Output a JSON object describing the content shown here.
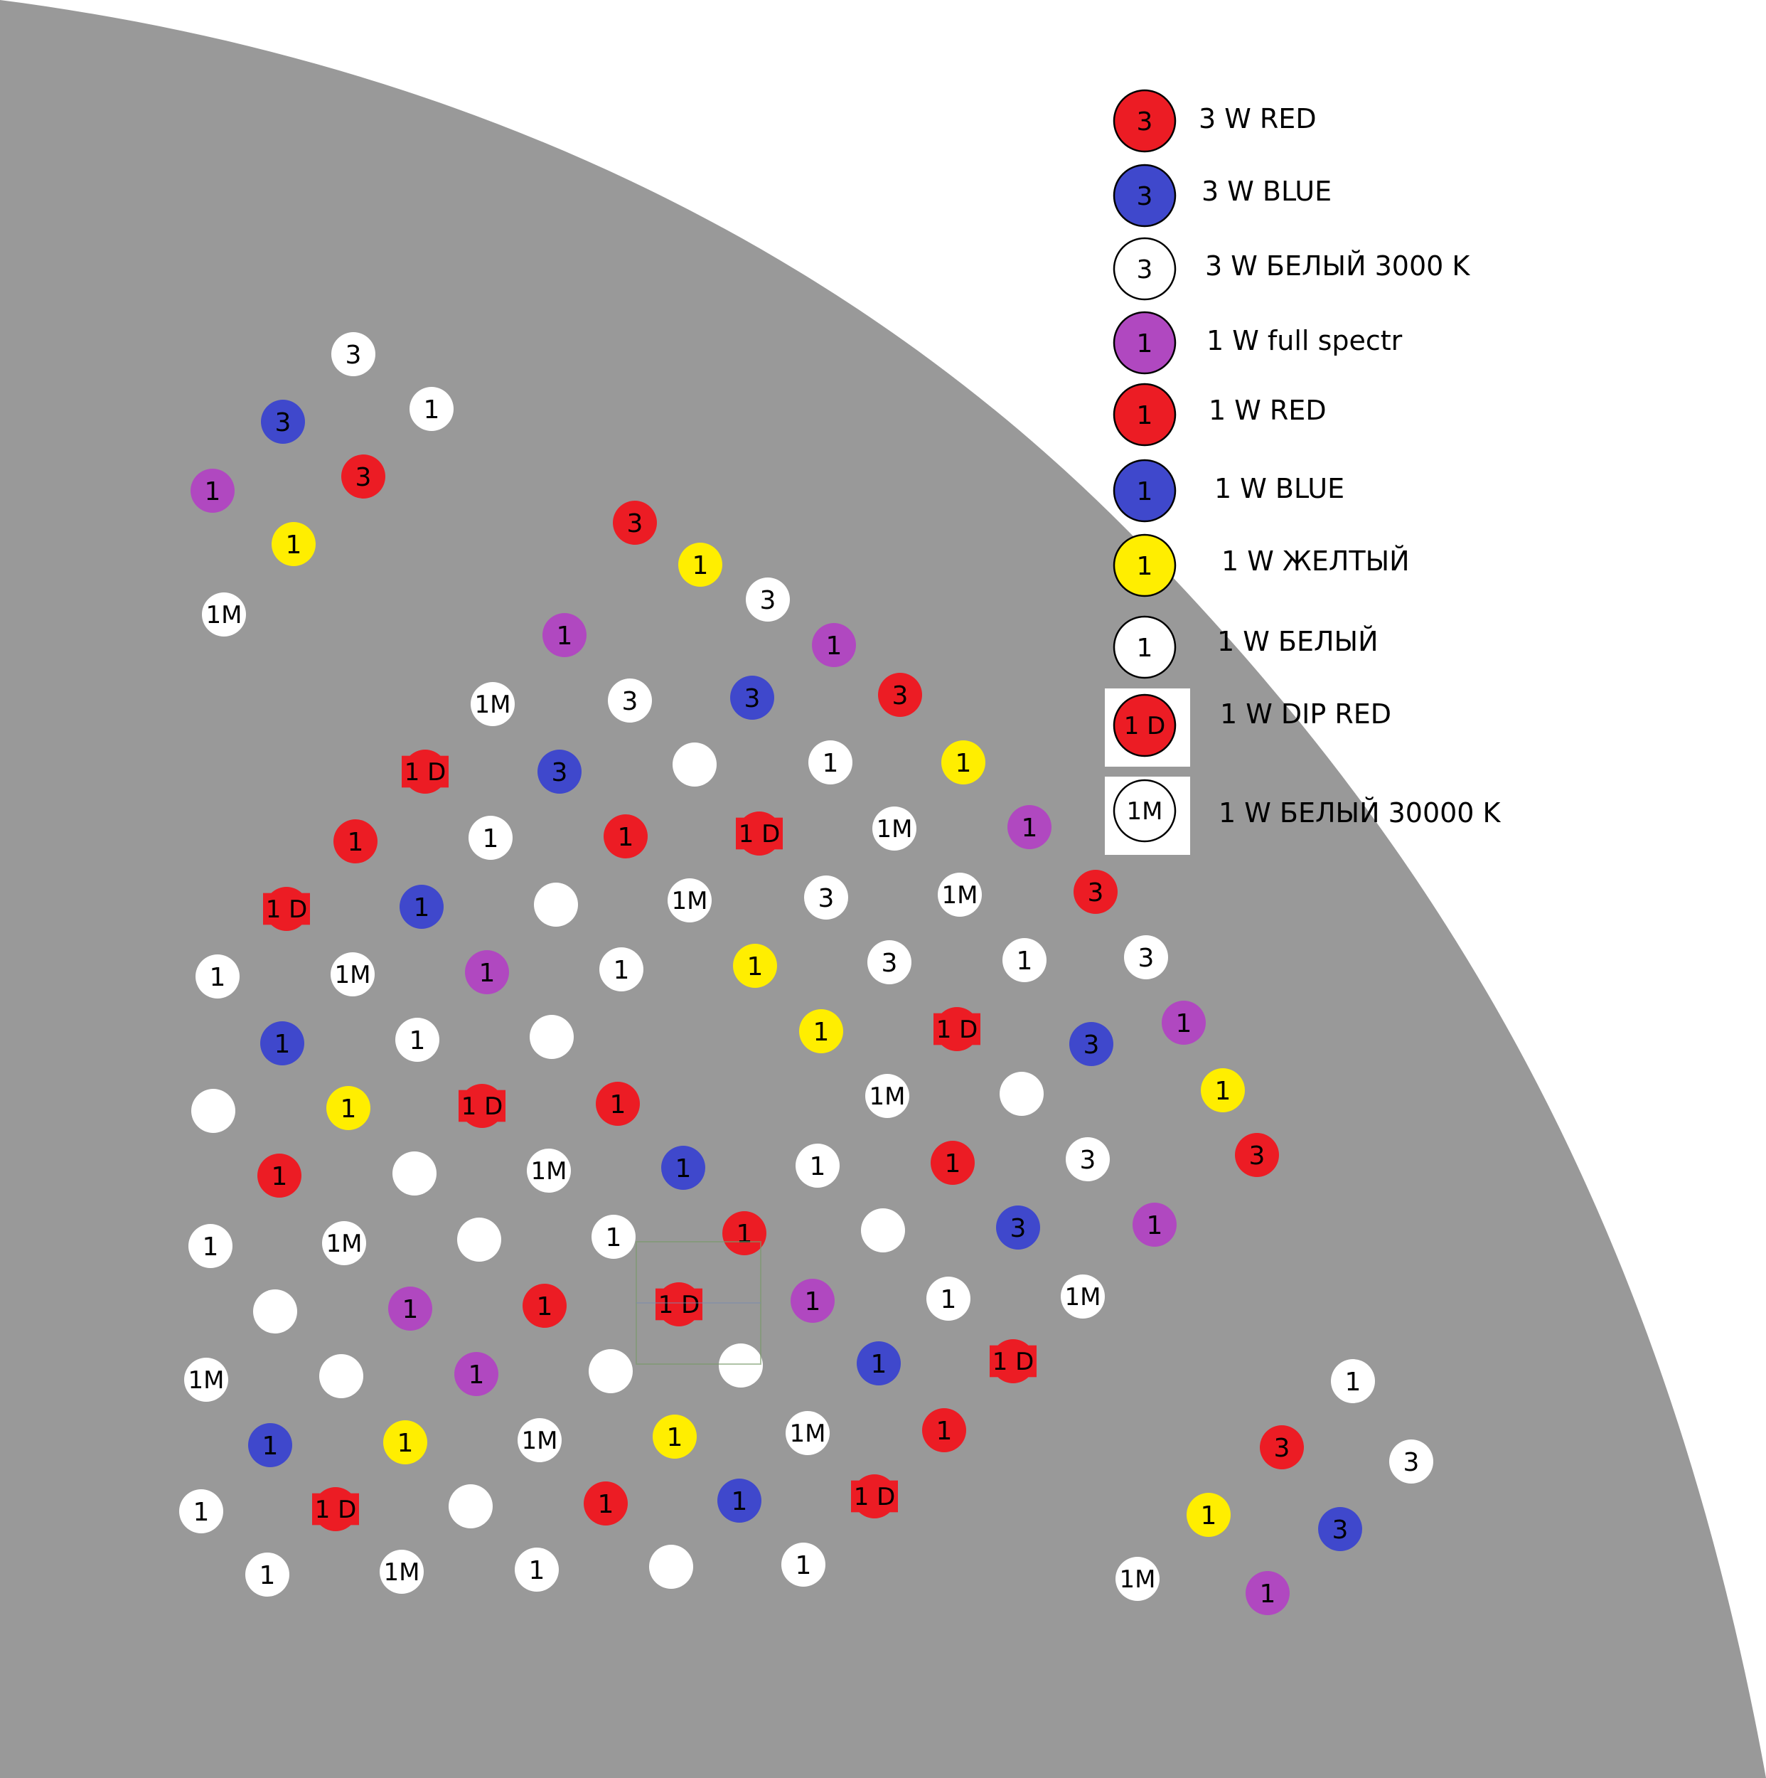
{
  "colors": {
    "background": "#999999",
    "outside": "#ffffff",
    "red": "#ec1c24",
    "blue": "#3f48cc",
    "white": "#ffffff",
    "purple": "#b048c0",
    "yellow": "#ffee00",
    "label": "#000000"
  },
  "legend": [
    {
      "type": "r3",
      "color": "red",
      "symbol": "3",
      "label": "3 W  RED"
    },
    {
      "type": "b3",
      "color": "blue",
      "symbol": "3",
      "label": "3 W BLUE"
    },
    {
      "type": "w3",
      "color": "white",
      "symbol": "3",
      "label": "3 W БЕЛЫЙ 3000 K"
    },
    {
      "type": "p1",
      "color": "purple",
      "symbol": "1",
      "label": "1 W full spectr"
    },
    {
      "type": "r1",
      "color": "red",
      "symbol": "1",
      "label": "1 W RED"
    },
    {
      "type": "b1",
      "color": "blue",
      "symbol": "1",
      "label": "1 W BLUE"
    },
    {
      "type": "y1",
      "color": "yellow",
      "symbol": "1",
      "label": "1 W ЖЕЛТЫЙ"
    },
    {
      "type": "w1",
      "color": "white",
      "symbol": "1",
      "label": "1 W БЕЛЫЙ"
    },
    {
      "type": "d1",
      "color": "red",
      "symbol": "1 D",
      "label": "1 W DIP RED"
    },
    {
      "type": "m1",
      "color": "white",
      "symbol": "1M",
      "label": "1 W БЕЛЫЙ 30000 K"
    }
  ],
  "led_types": {
    "r3": {
      "color": "red",
      "symbol": "3"
    },
    "b3": {
      "color": "blue",
      "symbol": "3"
    },
    "w3": {
      "color": "white",
      "symbol": "3"
    },
    "p1": {
      "color": "purple",
      "symbol": "1"
    },
    "r1": {
      "color": "red",
      "symbol": "1"
    },
    "b1": {
      "color": "blue",
      "symbol": "1"
    },
    "y1": {
      "color": "yellow",
      "symbol": "1"
    },
    "w1": {
      "color": "white",
      "symbol": "1"
    },
    "d1": {
      "color": "red",
      "symbol": "1 D"
    },
    "m1": {
      "color": "white",
      "symbol": "1M"
    },
    "blank": {
      "color": "white",
      "symbol": ""
    }
  },
  "leds": [
    "w3",
    "w1",
    "b3",
    "r3",
    "p1",
    "y1",
    "m1",
    "r3",
    "y1",
    "w3",
    "p1",
    "p1",
    "r3",
    "b3",
    "w3",
    "m1",
    "d1",
    "b3",
    "blank",
    "w1",
    "y1",
    "r1",
    "w1",
    "r1",
    "d1",
    "m1",
    "p1",
    "d1",
    "b1",
    "blank",
    "m1",
    "w3",
    "m1",
    "r3",
    "w1",
    "m1",
    "p1",
    "w1",
    "y1",
    "w3",
    "w1",
    "w3",
    "b1",
    "w1",
    "blank",
    "y1",
    "d1",
    "b3",
    "p1",
    "blank",
    "y1",
    "d1",
    "r1",
    "m1",
    "blank",
    "y1",
    "r1",
    "blank",
    "m1",
    "b1",
    "w1",
    "r1",
    "w3",
    "r3",
    "w1",
    "m1",
    "blank",
    "w1",
    "r1",
    "blank",
    "b3",
    "p1",
    "blank",
    "p1",
    "r1",
    "d1",
    "p1",
    "w1",
    "m1",
    "m1",
    "blank",
    "p1",
    "blank",
    "blank",
    "b1",
    "d1",
    "b1",
    "y1",
    "m1",
    "y1",
    "m1",
    "r1",
    "w1",
    "d1",
    "blank",
    "r1",
    "b1",
    "d1",
    "w1",
    "m1",
    "w1",
    "blank",
    "w1",
    "w1",
    "r3",
    "w3",
    "y1",
    "b3",
    "m1",
    "p1"
  ]
}
